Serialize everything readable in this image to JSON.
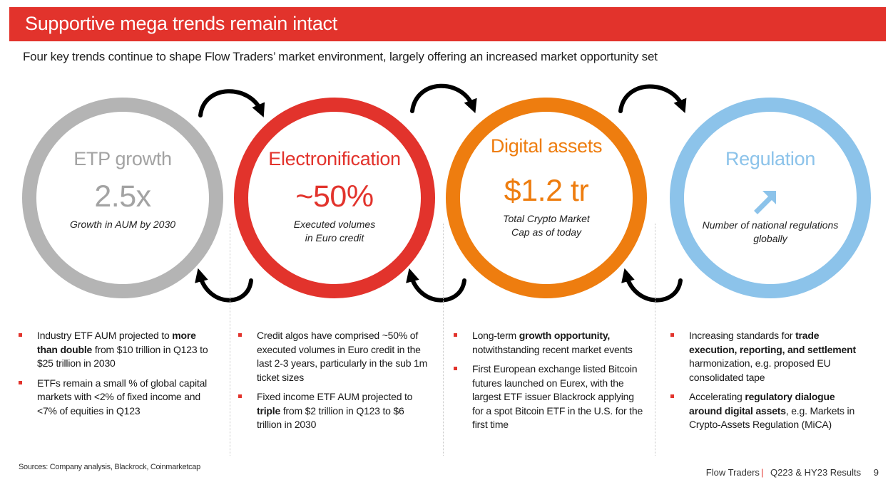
{
  "header": {
    "title": "Supportive mega trends remain intact",
    "subtitle": "Four key trends continue to shape Flow Traders’ market environment, largely offering an increased market opportunity set"
  },
  "colors": {
    "brand_red": "#e2332c",
    "etp_grey": "#b4b4b4",
    "electronification_red": "#e2332c",
    "digital_orange": "#ee7d0f",
    "regulation_blue": "#8cc3ea"
  },
  "trends": [
    {
      "title": "ETP growth",
      "value": "2.5x",
      "desc_line1": "Growth in AUM by 2030",
      "desc_line2": "",
      "bullets": [
        {
          "pre": "Industry ETF AUM projected to ",
          "bold": "more than double",
          "post": " from $10 trillion in Q123 to $25 trillion in 2030"
        },
        {
          "pre": "ETFs remain a small % of global capital markets with <2% of fixed income and <7% of equities in Q123",
          "bold": "",
          "post": ""
        }
      ]
    },
    {
      "title": "Electronification",
      "value": "~50%",
      "desc_line1": "Executed volumes",
      "desc_line2": "in Euro credit",
      "bullets": [
        {
          "pre": "Credit algos have comprised ~50% of executed volumes in Euro credit in the last 2-3 years, particularly in the sub 1m ticket sizes",
          "bold": "",
          "post": ""
        },
        {
          "pre": "Fixed income ETF AUM projected to ",
          "bold": "triple",
          "post": " from $2 trillion in Q123 to $6 trillion in 2030"
        }
      ]
    },
    {
      "title": "Digital assets",
      "value": "$1.2 tr",
      "desc_line1": "Total Crypto Market",
      "desc_line2": "Cap as of today",
      "bullets": [
        {
          "pre": "Long-term ",
          "bold": "growth opportunity,",
          "post": " notwithstanding recent market events"
        },
        {
          "pre": "First European exchange listed Bitcoin futures launched on Eurex, with the largest ETF issuer Blackrock applying for a spot Bitcoin ETF in the U.S. for the first time",
          "bold": "",
          "post": ""
        }
      ]
    },
    {
      "title": "Regulation",
      "value": "",
      "icon": "arrow-up-right-icon",
      "desc_line1": "Number of national regulations",
      "desc_line2": "globally",
      "bullets": [
        {
          "pre": "Increasing standards for ",
          "bold": "trade execution, reporting, and settlement",
          "post": " harmonization, e.g. proposed EU consolidated tape"
        },
        {
          "pre": "Accelerating ",
          "bold": "regulatory dialogue around digital assets",
          "post": ", e.g. Markets in Crypto-Assets Regulation (MiCA)"
        }
      ]
    }
  ],
  "footer": {
    "sources": "Sources: Company analysis, Blackrock, Coinmarketcap",
    "company": "Flow Traders",
    "report": "Q223 & HY23 Results",
    "page": "9"
  }
}
